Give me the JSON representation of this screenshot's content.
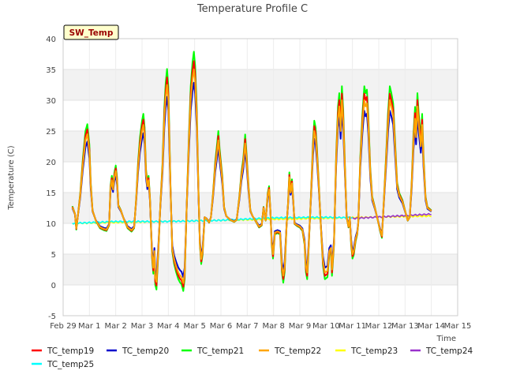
{
  "chart_data": {
    "type": "line",
    "title": "Temperature Profile C",
    "ylabel": "Temperature (C)",
    "xlabel": "Time",
    "ylim": [
      -5,
      40
    ],
    "xlim": [
      0,
      15
    ],
    "yticks": [
      -5,
      0,
      5,
      10,
      15,
      20,
      25,
      30,
      35,
      40
    ],
    "xticks": [
      {
        "x": 0,
        "label": "Feb 29"
      },
      {
        "x": 1,
        "label": "Mar 1"
      },
      {
        "x": 2,
        "label": "Mar 2"
      },
      {
        "x": 3,
        "label": "Mar 3"
      },
      {
        "x": 4,
        "label": "Mar 4"
      },
      {
        "x": 5,
        "label": "Mar 5"
      },
      {
        "x": 6,
        "label": "Mar 6"
      },
      {
        "x": 7,
        "label": "Mar 7"
      },
      {
        "x": 8,
        "label": "Mar 8"
      },
      {
        "x": 9,
        "label": "Mar 9"
      },
      {
        "x": 10,
        "label": "Mar 10"
      },
      {
        "x": 11,
        "label": "Mar 11"
      },
      {
        "x": 12,
        "label": "Mar 12"
      },
      {
        "x": 13,
        "label": "Mar 13"
      },
      {
        "x": 14,
        "label": "Mar 14"
      },
      {
        "x": 15,
        "label": "Mar 15"
      }
    ],
    "grid": "horizontal bands",
    "annotation": {
      "text": "SW_Temp",
      "position": "top-left"
    },
    "legend_position": "bottom",
    "base_profile": [
      [
        0.35,
        12.6
      ],
      [
        0.45,
        11.5
      ],
      [
        0.5,
        9.2
      ],
      [
        0.55,
        10.8
      ],
      [
        0.65,
        14.5
      ],
      [
        0.75,
        19.5
      ],
      [
        0.85,
        23.5
      ],
      [
        0.92,
        24.5
      ],
      [
        1.0,
        21.5
      ],
      [
        1.05,
        16
      ],
      [
        1.12,
        12
      ],
      [
        1.25,
        10.4
      ],
      [
        1.4,
        9.4
      ],
      [
        1.55,
        9.1
      ],
      [
        1.65,
        9.0
      ],
      [
        1.75,
        9.8
      ],
      [
        1.8,
        15.5
      ],
      [
        1.85,
        17
      ],
      [
        1.9,
        15.5
      ],
      [
        1.95,
        17.5
      ],
      [
        2.0,
        18.5
      ],
      [
        2.05,
        16.8
      ],
      [
        2.1,
        12.8
      ],
      [
        2.2,
        12
      ],
      [
        2.3,
        10.8
      ],
      [
        2.45,
        9.4
      ],
      [
        2.6,
        8.9
      ],
      [
        2.7,
        9.4
      ],
      [
        2.78,
        14
      ],
      [
        2.85,
        19
      ],
      [
        2.92,
        22.5
      ],
      [
        3.0,
        25
      ],
      [
        3.05,
        26
      ],
      [
        3.1,
        24
      ],
      [
        3.15,
        18
      ],
      [
        3.2,
        16
      ],
      [
        3.25,
        17
      ],
      [
        3.3,
        14
      ],
      [
        3.38,
        5
      ],
      [
        3.43,
        2.8
      ],
      [
        3.47,
        5.5
      ],
      [
        3.5,
        1.2
      ],
      [
        3.55,
        0.5
      ],
      [
        3.62,
        6
      ],
      [
        3.7,
        13
      ],
      [
        3.78,
        19
      ],
      [
        3.85,
        27
      ],
      [
        3.9,
        30.5
      ],
      [
        3.95,
        32.5
      ],
      [
        4.0,
        30
      ],
      [
        4.08,
        16
      ],
      [
        4.15,
        6
      ],
      [
        4.22,
        4.2
      ],
      [
        4.3,
        3
      ],
      [
        4.38,
        2
      ],
      [
        4.45,
        1.5
      ],
      [
        4.5,
        1.3
      ],
      [
        4.57,
        0.3
      ],
      [
        4.62,
        2
      ],
      [
        4.7,
        13
      ],
      [
        4.78,
        22.5
      ],
      [
        4.85,
        30
      ],
      [
        4.92,
        33.5
      ],
      [
        4.97,
        35
      ],
      [
        5.02,
        33
      ],
      [
        5.08,
        27
      ],
      [
        5.15,
        14
      ],
      [
        5.2,
        7
      ],
      [
        5.25,
        4.2
      ],
      [
        5.3,
        5.5
      ],
      [
        5.38,
        11
      ],
      [
        5.45,
        10.8
      ],
      [
        5.55,
        10.2
      ],
      [
        5.62,
        11
      ],
      [
        5.7,
        14.5
      ],
      [
        5.78,
        19
      ],
      [
        5.85,
        21.5
      ],
      [
        5.9,
        23.5
      ],
      [
        5.95,
        21
      ],
      [
        6.05,
        17
      ],
      [
        6.12,
        12.5
      ],
      [
        6.2,
        11.2
      ],
      [
        6.35,
        10.6
      ],
      [
        6.5,
        10.3
      ],
      [
        6.6,
        10.6
      ],
      [
        6.7,
        14
      ],
      [
        6.78,
        17.5
      ],
      [
        6.85,
        19.5
      ],
      [
        6.92,
        23
      ],
      [
        6.97,
        20.5
      ],
      [
        7.05,
        15.5
      ],
      [
        7.12,
        12
      ],
      [
        7.2,
        11.2
      ],
      [
        7.35,
        10.2
      ],
      [
        7.45,
        9.5
      ],
      [
        7.55,
        9.8
      ],
      [
        7.62,
        12.5
      ],
      [
        7.7,
        10.5
      ],
      [
        7.78,
        14.5
      ],
      [
        7.83,
        15.5
      ],
      [
        7.88,
        12
      ],
      [
        7.93,
        7
      ],
      [
        7.98,
        5
      ],
      [
        8.05,
        8.5
      ],
      [
        8.15,
        8.7
      ],
      [
        8.25,
        8.5
      ],
      [
        8.32,
        3
      ],
      [
        8.37,
        1.5
      ],
      [
        8.42,
        3
      ],
      [
        8.5,
        10
      ],
      [
        8.55,
        13
      ],
      [
        8.6,
        17.5
      ],
      [
        8.65,
        15
      ],
      [
        8.7,
        16.5
      ],
      [
        8.75,
        13.5
      ],
      [
        8.8,
        10
      ],
      [
        8.9,
        9.7
      ],
      [
        9.0,
        9.5
      ],
      [
        9.1,
        9
      ],
      [
        9.18,
        7
      ],
      [
        9.23,
        3
      ],
      [
        9.28,
        2
      ],
      [
        9.33,
        6
      ],
      [
        9.42,
        14
      ],
      [
        9.5,
        22
      ],
      [
        9.55,
        25
      ],
      [
        9.6,
        24
      ],
      [
        9.65,
        21
      ],
      [
        9.72,
        16
      ],
      [
        9.8,
        9.5
      ],
      [
        9.88,
        4
      ],
      [
        9.95,
        2
      ],
      [
        10.05,
        2.3
      ],
      [
        10.12,
        5.5
      ],
      [
        10.18,
        6
      ],
      [
        10.22,
        2.5
      ],
      [
        10.3,
        7
      ],
      [
        10.38,
        20
      ],
      [
        10.45,
        27
      ],
      [
        10.5,
        29
      ],
      [
        10.55,
        25
      ],
      [
        10.6,
        30
      ],
      [
        10.65,
        26.5
      ],
      [
        10.72,
        18
      ],
      [
        10.78,
        11
      ],
      [
        10.85,
        9.5
      ],
      [
        10.9,
        11
      ],
      [
        10.95,
        7
      ],
      [
        11.0,
        5
      ],
      [
        11.05,
        5.5
      ],
      [
        11.12,
        7.5
      ],
      [
        11.18,
        8.5
      ],
      [
        11.22,
        10
      ],
      [
        11.3,
        20
      ],
      [
        11.38,
        26
      ],
      [
        11.45,
        30
      ],
      [
        11.5,
        29
      ],
      [
        11.55,
        29.5
      ],
      [
        11.6,
        26
      ],
      [
        11.68,
        18
      ],
      [
        11.75,
        14
      ],
      [
        11.85,
        12.5
      ],
      [
        11.95,
        10.8
      ],
      [
        12.05,
        9
      ],
      [
        12.12,
        8
      ],
      [
        12.2,
        14
      ],
      [
        12.28,
        20
      ],
      [
        12.35,
        26
      ],
      [
        12.42,
        30
      ],
      [
        12.48,
        29
      ],
      [
        12.55,
        27.5
      ],
      [
        12.62,
        22
      ],
      [
        12.7,
        16
      ],
      [
        12.78,
        14.5
      ],
      [
        12.9,
        13.5
      ],
      [
        13.0,
        12
      ],
      [
        13.1,
        10.5
      ],
      [
        13.18,
        11
      ],
      [
        13.25,
        16
      ],
      [
        13.32,
        23
      ],
      [
        13.38,
        27
      ],
      [
        13.42,
        24
      ],
      [
        13.47,
        29
      ],
      [
        13.52,
        26
      ],
      [
        13.6,
        22.5
      ],
      [
        13.65,
        26
      ],
      [
        13.7,
        20
      ],
      [
        13.78,
        14
      ],
      [
        13.85,
        12.5
      ],
      [
        14.0,
        12
      ]
    ],
    "series": [
      {
        "name": "TC_temp19",
        "color": "#ff0000",
        "base_offset": 0.4,
        "amp": 1.03,
        "x_range": [
          0.35,
          14.0
        ]
      },
      {
        "name": "TC_temp20",
        "color": "#0000cc",
        "base_offset": -0.3,
        "amp": 0.93,
        "x_range": [
          0.35,
          14.0
        ]
      },
      {
        "name": "TC_temp21",
        "color": "#00ff00",
        "base_offset": 0.6,
        "amp": 1.08,
        "x_range": [
          0.35,
          14.0
        ]
      },
      {
        "name": "TC_temp22",
        "color": "#ffa500",
        "base_offset": 0.0,
        "amp": 1.0,
        "x_range": [
          0.35,
          14.0
        ]
      },
      {
        "name": "TC_temp23",
        "color": "#ffff00",
        "flat": [
          [
            0.35,
            10.0
          ],
          [
            14.0,
            11.2
          ]
        ],
        "x_range": [
          0.35,
          14.0
        ]
      },
      {
        "name": "TC_temp24",
        "color": "#9932cc",
        "flat": [
          [
            11.0,
            10.8
          ],
          [
            14.0,
            11.5
          ]
        ],
        "x_range": [
          11.0,
          14.0
        ]
      },
      {
        "name": "TC_temp25",
        "color": "#00ffff",
        "flat": [
          [
            0.35,
            10.0
          ],
          [
            2.0,
            10.3
          ],
          [
            4.0,
            10.3
          ],
          [
            6.0,
            10.5
          ],
          [
            8.0,
            10.9
          ],
          [
            10.0,
            11.0
          ],
          [
            11.0,
            10.9
          ]
        ],
        "x_range": [
          0.35,
          11.0
        ]
      }
    ]
  }
}
